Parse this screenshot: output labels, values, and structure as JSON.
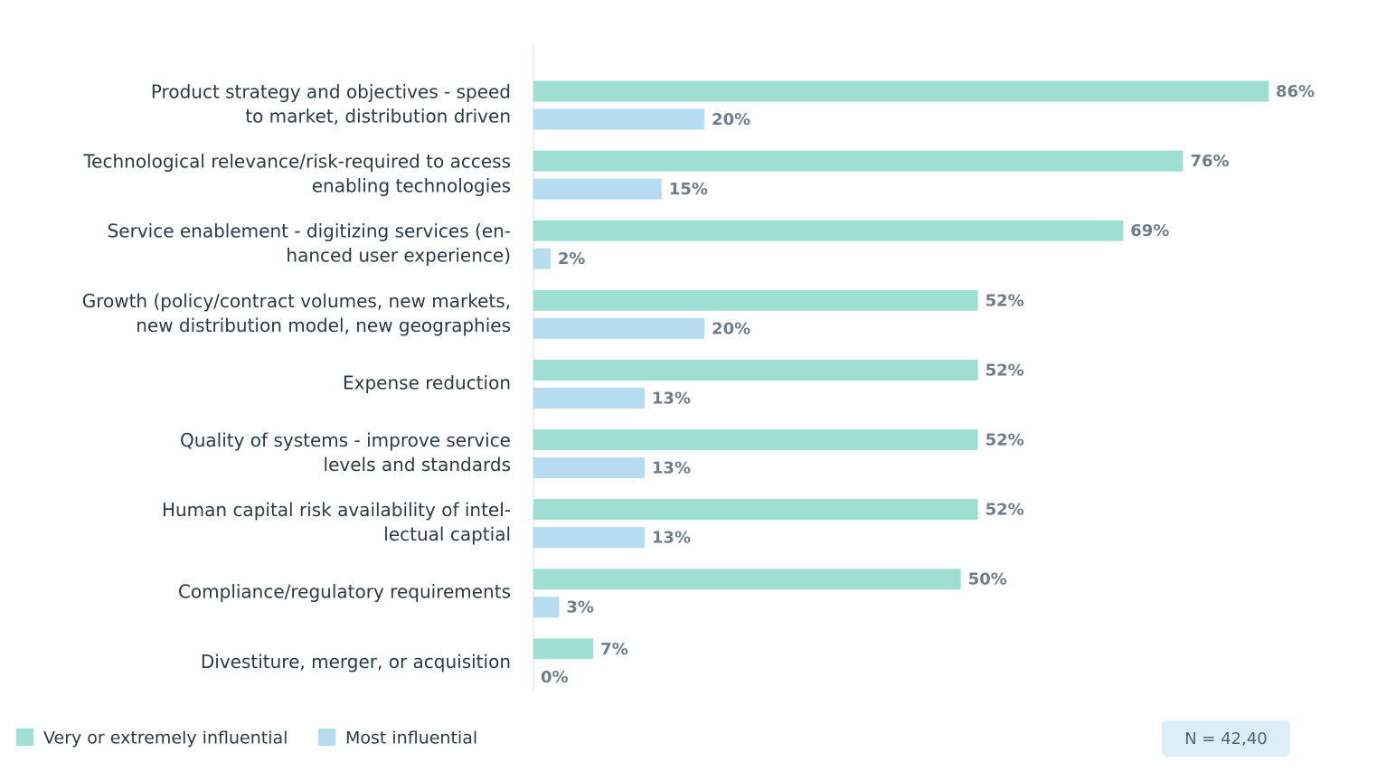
{
  "chart_data": {
    "type": "bar",
    "orientation": "horizontal",
    "categories": [
      [
        "Product strategy and objectives - speed",
        "to market, distribution driven"
      ],
      [
        "Technological relevance/risk-required to access",
        "enabling technologies"
      ],
      [
        "Service enablement - digitizing services (en-",
        "hanced user experience)"
      ],
      [
        "Growth (policy/contract volumes, new markets,",
        "new distribution model, new geographies"
      ],
      [
        "Expense reduction"
      ],
      [
        "Quality of systems - improve service",
        "levels and standards"
      ],
      [
        "Human capital risk availability of intel-",
        "lectual captial"
      ],
      [
        "Compliance/regulatory requirements"
      ],
      [
        "Divestiture, merger, or acquisition"
      ]
    ],
    "series": [
      {
        "name": "Very or extremely influential",
        "color": "#9edfd3",
        "values": [
          86,
          76,
          69,
          52,
          52,
          52,
          52,
          50,
          7
        ],
        "value_labels": [
          "86%",
          "76%",
          "69%",
          "52%",
          "52%",
          "52%",
          "52%",
          "50%",
          "7%"
        ]
      },
      {
        "name": "Most influential",
        "color": "#b5dcf0",
        "values": [
          20,
          15,
          2,
          20,
          13,
          13,
          13,
          3,
          0
        ],
        "value_labels": [
          "20%",
          "15%",
          "2%",
          "20%",
          "13%",
          "13%",
          "13%",
          "3%",
          "0%"
        ]
      }
    ],
    "annotation": "N = 42,40"
  }
}
